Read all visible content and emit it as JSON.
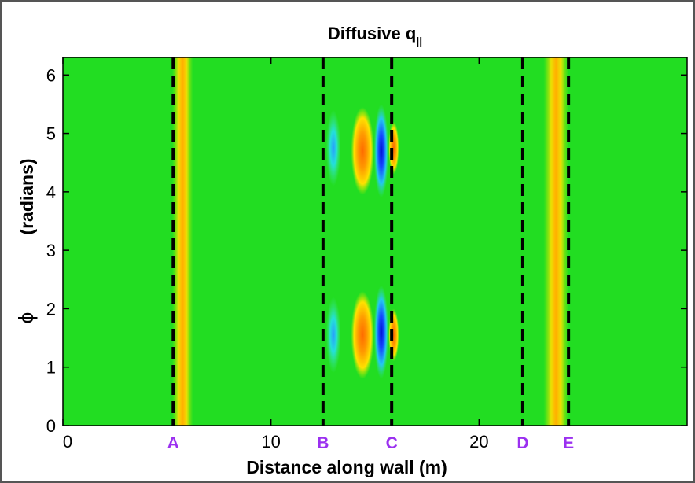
{
  "chart_data": {
    "type": "heatmap",
    "title": "Diffusive q",
    "title_subscript": "||",
    "xlabel": "Distance along wall (m)",
    "ylabel_symbol": "ϕ",
    "ylabel_units": "(radians)",
    "xlim": [
      0,
      30
    ],
    "ylim": [
      0,
      6.3
    ],
    "x_ticks": [
      0,
      10,
      20
    ],
    "x_tick_labels": [
      "0",
      "10",
      "20"
    ],
    "y_ticks": [
      0,
      1,
      2,
      3,
      4,
      5,
      6
    ],
    "y_tick_labels": [
      "0",
      "1",
      "2",
      "3",
      "4",
      "5",
      "6"
    ],
    "grid": false,
    "background_color": "#22dd22",
    "colors": {
      "hot_core": "#e8141c",
      "hot": "#ff8c00",
      "warm": "#ffe100",
      "cool": "#24e0d8",
      "cold": "#1448ff",
      "marker_line": "#000000",
      "marker_label": "#9b30f0"
    },
    "markers": [
      {
        "label": "A",
        "x": 5.3
      },
      {
        "label": "B",
        "x": 12.5
      },
      {
        "label": "C",
        "x": 15.8
      },
      {
        "label": "D",
        "x": 22.1
      },
      {
        "label": "E",
        "x": 24.3
      }
    ],
    "features": [
      {
        "kind": "band",
        "x_center": 5.75,
        "x_width": 0.35,
        "y_from": 0,
        "y_to": 6.3,
        "level": "hot_core"
      },
      {
        "kind": "band",
        "x_center": 5.75,
        "x_width": 1.0,
        "y_from": 0,
        "y_to": 6.3,
        "level": "warm"
      },
      {
        "kind": "band",
        "x_center": 23.7,
        "x_width": 0.35,
        "y_from": 0.2,
        "y_to": 6.1,
        "level": "hot_core"
      },
      {
        "kind": "band",
        "x_center": 23.7,
        "x_width": 1.2,
        "y_from": 0,
        "y_to": 6.3,
        "level": "warm"
      },
      {
        "kind": "blob",
        "x_center": 13.0,
        "y_center": 4.75,
        "x_width": 0.7,
        "y_height": 1.3,
        "level": "cool"
      },
      {
        "kind": "blob",
        "x_center": 14.4,
        "y_center": 4.7,
        "x_width": 1.1,
        "y_height": 1.5,
        "level": "hot"
      },
      {
        "kind": "blob",
        "x_center": 15.3,
        "y_center": 4.7,
        "x_width": 0.7,
        "y_height": 1.6,
        "level": "cold"
      },
      {
        "kind": "blob",
        "x_center": 15.9,
        "y_center": 4.75,
        "x_width": 0.5,
        "y_height": 0.9,
        "level": "hot"
      },
      {
        "kind": "blob",
        "x_center": 13.0,
        "y_center": 1.55,
        "x_width": 0.7,
        "y_height": 1.3,
        "level": "cool"
      },
      {
        "kind": "blob",
        "x_center": 14.4,
        "y_center": 1.55,
        "x_width": 1.1,
        "y_height": 1.5,
        "level": "hot"
      },
      {
        "kind": "blob",
        "x_center": 15.3,
        "y_center": 1.6,
        "x_width": 0.7,
        "y_height": 1.6,
        "level": "cold"
      },
      {
        "kind": "blob",
        "x_center": 15.9,
        "y_center": 1.55,
        "x_width": 0.5,
        "y_height": 0.9,
        "level": "hot"
      }
    ]
  }
}
